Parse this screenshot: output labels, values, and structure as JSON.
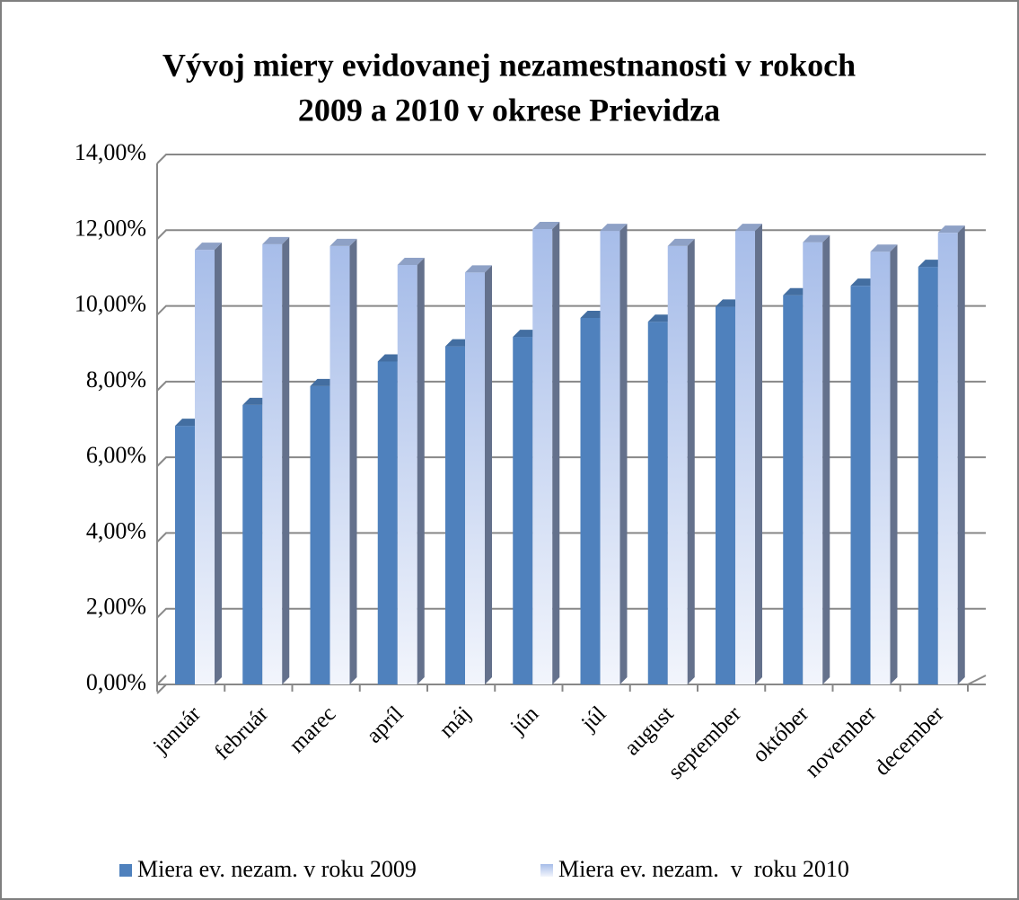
{
  "chart_data": {
    "type": "bar3d",
    "title": [
      "Vývoj miery evidovanej nezamestnanosti v rokoch",
      "2009 a 2010 v okrese Prievidza"
    ],
    "categories": [
      "január",
      "február",
      "marec",
      "apríl",
      "máj",
      "jún",
      "júl",
      "august",
      "september",
      "október",
      "november",
      "december"
    ],
    "series": [
      {
        "name": "Miera ev. nezam. v roku 2009",
        "color": "#4f81bd",
        "values": [
          6.95,
          7.5,
          8.0,
          8.65,
          9.05,
          9.3,
          9.8,
          9.7,
          10.1,
          10.4,
          10.65,
          11.15
        ]
      },
      {
        "name": "Miera ev. nezam.  v  roku 2010",
        "color": "#a7bde9",
        "values": [
          11.6,
          11.75,
          11.7,
          11.2,
          11.0,
          12.15,
          12.1,
          11.7,
          12.1,
          11.8,
          11.55,
          12.05
        ]
      }
    ],
    "ylim": [
      0,
      14
    ],
    "yticks": [
      {
        "value": 0,
        "label": "0,00%"
      },
      {
        "value": 2,
        "label": "2,00%"
      },
      {
        "value": 4,
        "label": "4,00%"
      },
      {
        "value": 6,
        "label": "6,00%"
      },
      {
        "value": 8,
        "label": "8,00%"
      },
      {
        "value": 10,
        "label": "10,00%"
      },
      {
        "value": 12,
        "label": "12,00%"
      },
      {
        "value": 14,
        "label": "14,00%"
      }
    ],
    "grid": true,
    "legend": "bottom"
  }
}
